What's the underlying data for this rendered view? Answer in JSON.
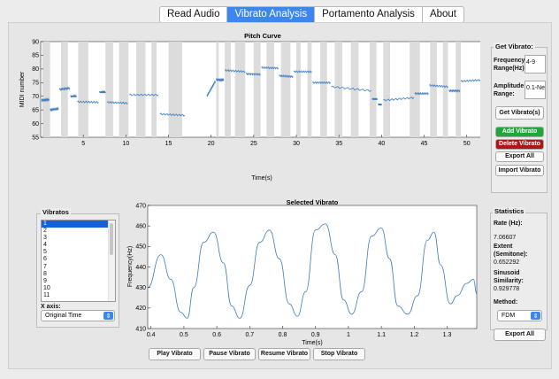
{
  "tabs": [
    "Read Audio",
    "Vibrato Analysis",
    "Portamento Analysis",
    "About"
  ],
  "pitch_curve": {
    "title": "Pitch Curve",
    "ylabel": "MIDI number",
    "xlabel": "Time(s)",
    "yticks": [
      "55",
      "60",
      "65",
      "70",
      "75",
      "80",
      "85",
      "90"
    ],
    "xticks": [
      "5",
      "10",
      "15",
      "20",
      "25",
      "30",
      "35",
      "40",
      "45",
      "50"
    ]
  },
  "chart_data": [
    {
      "type": "line",
      "title": "Pitch Curve",
      "xlabel": "Time(s)",
      "ylabel": "MIDI number",
      "xlim": [
        0,
        52
      ],
      "ylim": [
        55,
        90
      ],
      "segments": [
        {
          "x": [
            0.1,
            1.0
          ],
          "y": [
            68.5,
            68.8
          ]
        },
        {
          "x": [
            1.1,
            2.1
          ],
          "y": [
            65,
            65.5
          ]
        },
        {
          "x": [
            2.2,
            3.4
          ],
          "y": [
            72.5,
            73
          ]
        },
        {
          "x": [
            3.5,
            4.2
          ],
          "y": [
            70,
            70
          ]
        },
        {
          "x": [
            4.3,
            6.8
          ],
          "y": [
            68,
            67.8
          ]
        },
        {
          "x": [
            6.9,
            7.6
          ],
          "y": [
            71.5,
            71.5
          ]
        },
        {
          "x": [
            7.8,
            10.2
          ],
          "y": [
            67.8,
            67.5
          ]
        },
        {
          "x": [
            10.4,
            13.8
          ],
          "y": [
            70.5,
            70.5
          ]
        },
        {
          "x": [
            14.0,
            16.9
          ],
          "y": [
            63.5,
            63
          ]
        },
        {
          "x": [
            19.5,
            20.5
          ],
          "y": [
            70,
            75.5
          ]
        },
        {
          "x": [
            20.6,
            21.5
          ],
          "y": [
            76,
            76
          ]
        },
        {
          "x": [
            21.6,
            24.0
          ],
          "y": [
            79.5,
            79
          ]
        },
        {
          "x": [
            24.1,
            25.8
          ],
          "y": [
            78.2,
            78
          ]
        },
        {
          "x": [
            25.9,
            27.9
          ],
          "y": [
            80.5,
            80.3
          ]
        },
        {
          "x": [
            28.0,
            29.6
          ],
          "y": [
            77.5,
            77.2
          ]
        },
        {
          "x": [
            29.7,
            31.8
          ],
          "y": [
            79,
            79
          ]
        },
        {
          "x": [
            31.9,
            34.0
          ],
          "y": [
            75,
            75
          ]
        },
        {
          "x": [
            34.1,
            38.8
          ],
          "y": [
            73.5,
            72
          ]
        },
        {
          "x": [
            38.9,
            39.5
          ],
          "y": [
            69,
            69
          ]
        },
        {
          "x": [
            39.6,
            40.0
          ],
          "y": [
            67,
            67
          ]
        },
        {
          "x": [
            40.2,
            43.8
          ],
          "y": [
            68.5,
            69.5
          ]
        },
        {
          "x": [
            43.9,
            45.5
          ],
          "y": [
            71,
            71
          ]
        },
        {
          "x": [
            45.6,
            47.8
          ],
          "y": [
            74,
            73.5
          ]
        },
        {
          "x": [
            47.9,
            49.2
          ],
          "y": [
            72,
            72
          ]
        },
        {
          "x": [
            49.3,
            51.9
          ],
          "y": [
            75.5,
            76
          ]
        }
      ],
      "vibrato_regions": [
        [
          0.2,
          1.1
        ],
        [
          2.4,
          3.2
        ],
        [
          4.4,
          5.6
        ],
        [
          7.6,
          8.5
        ],
        [
          9.2,
          10.3
        ],
        [
          11.2,
          12.3
        ],
        [
          13.0,
          13.6
        ],
        [
          15.0,
          16.6
        ],
        [
          20.6,
          20.9
        ],
        [
          21.6,
          22.3
        ],
        [
          22.8,
          24.0
        ],
        [
          25.0,
          25.8
        ],
        [
          26.5,
          27.4
        ],
        [
          28.2,
          29.3
        ],
        [
          30.0,
          30.5
        ],
        [
          31.3,
          31.8
        ],
        [
          32.8,
          33.6
        ],
        [
          34.5,
          35.4
        ],
        [
          36.4,
          37.3
        ],
        [
          38.6,
          39.4
        ],
        [
          40.2,
          41.0
        ],
        [
          43.3,
          44.5
        ],
        [
          45.7,
          46.5
        ],
        [
          47.2,
          47.8
        ],
        [
          48.7,
          49.3
        ]
      ]
    },
    {
      "type": "line",
      "title": "Selected Vibrato",
      "xlabel": "Time(s)",
      "ylabel": "Frequency(Hz)",
      "xlim": [
        0.39,
        1.39
      ],
      "ylim": [
        410,
        470
      ],
      "x": [
        0.39,
        0.43,
        0.46,
        0.49,
        0.51,
        0.53,
        0.56,
        0.59,
        0.62,
        0.645,
        0.67,
        0.7,
        0.73,
        0.76,
        0.79,
        0.82,
        0.845,
        0.87,
        0.9,
        0.93,
        0.96,
        0.985,
        1.01,
        1.04,
        1.07,
        1.1,
        1.125,
        1.15,
        1.18,
        1.21,
        1.24,
        1.26,
        1.28,
        1.31,
        1.33,
        1.36,
        1.38,
        1.39
      ],
      "y": [
        430,
        446,
        434,
        418,
        415,
        430,
        452,
        457,
        442,
        421,
        415,
        431,
        452,
        458,
        444,
        422,
        416,
        428,
        458,
        461,
        446,
        424,
        417,
        428,
        455,
        459,
        444,
        421,
        417,
        426,
        453,
        457,
        441,
        422,
        426,
        432,
        434,
        427
      ]
    }
  ],
  "selected_vibrato": {
    "title": "Selected Vibrato",
    "ylabel": "Frequency(Hz)",
    "xlabel": "Time(s)",
    "yticks": [
      "410",
      "420",
      "430",
      "440",
      "450",
      "460",
      "470"
    ],
    "xticks": [
      "0.4",
      "0.5",
      "0.6",
      "0.7",
      "0.8",
      "0.9",
      "1",
      "1.1",
      "1.2",
      "1.3"
    ]
  },
  "get_vibrato": {
    "title": "Get Vibrato:",
    "freq_label": "Frequency Range(Hz):",
    "freq_value": "4-9",
    "amp_label": "Amplitude Range:",
    "amp_value": "0.1-Ne",
    "get_button": "Get Vibrato(s)"
  },
  "actions": {
    "add": "Add Vibrato",
    "delete": "Delete Vibrato",
    "export": "Export All",
    "import": "Import Vibrato",
    "add_color": "#1fa83a",
    "delete_color": "#a81818"
  },
  "vibratos": {
    "title": "Vibratos",
    "items": [
      "1",
      "2",
      "3",
      "4",
      "5",
      "6",
      "7",
      "8",
      "9",
      "10",
      "11"
    ],
    "selected_index": 0,
    "xaxis_label": "X axis:",
    "xaxis_value": "Original Time"
  },
  "playback": {
    "play": "Play Vibrato",
    "pause": "Pause Vibrato",
    "resume": "Resume Vibrato",
    "stop": "Stop Vibrato"
  },
  "statistics": {
    "title": "Statistics",
    "rate_label": "Rate (Hz):",
    "rate_value": "7.06607",
    "extent_label": "Extent (Semitone):",
    "extent_value": "0.652292",
    "sim_label": "Sinusoid Similarity:",
    "sim_value": "0.929778",
    "method_label": "Method:",
    "method_value": "FDM",
    "export": "Export All"
  },
  "colors": {
    "line": "#3b7bbf",
    "region": "#dcdcdc",
    "accent": "#3d86f0"
  }
}
